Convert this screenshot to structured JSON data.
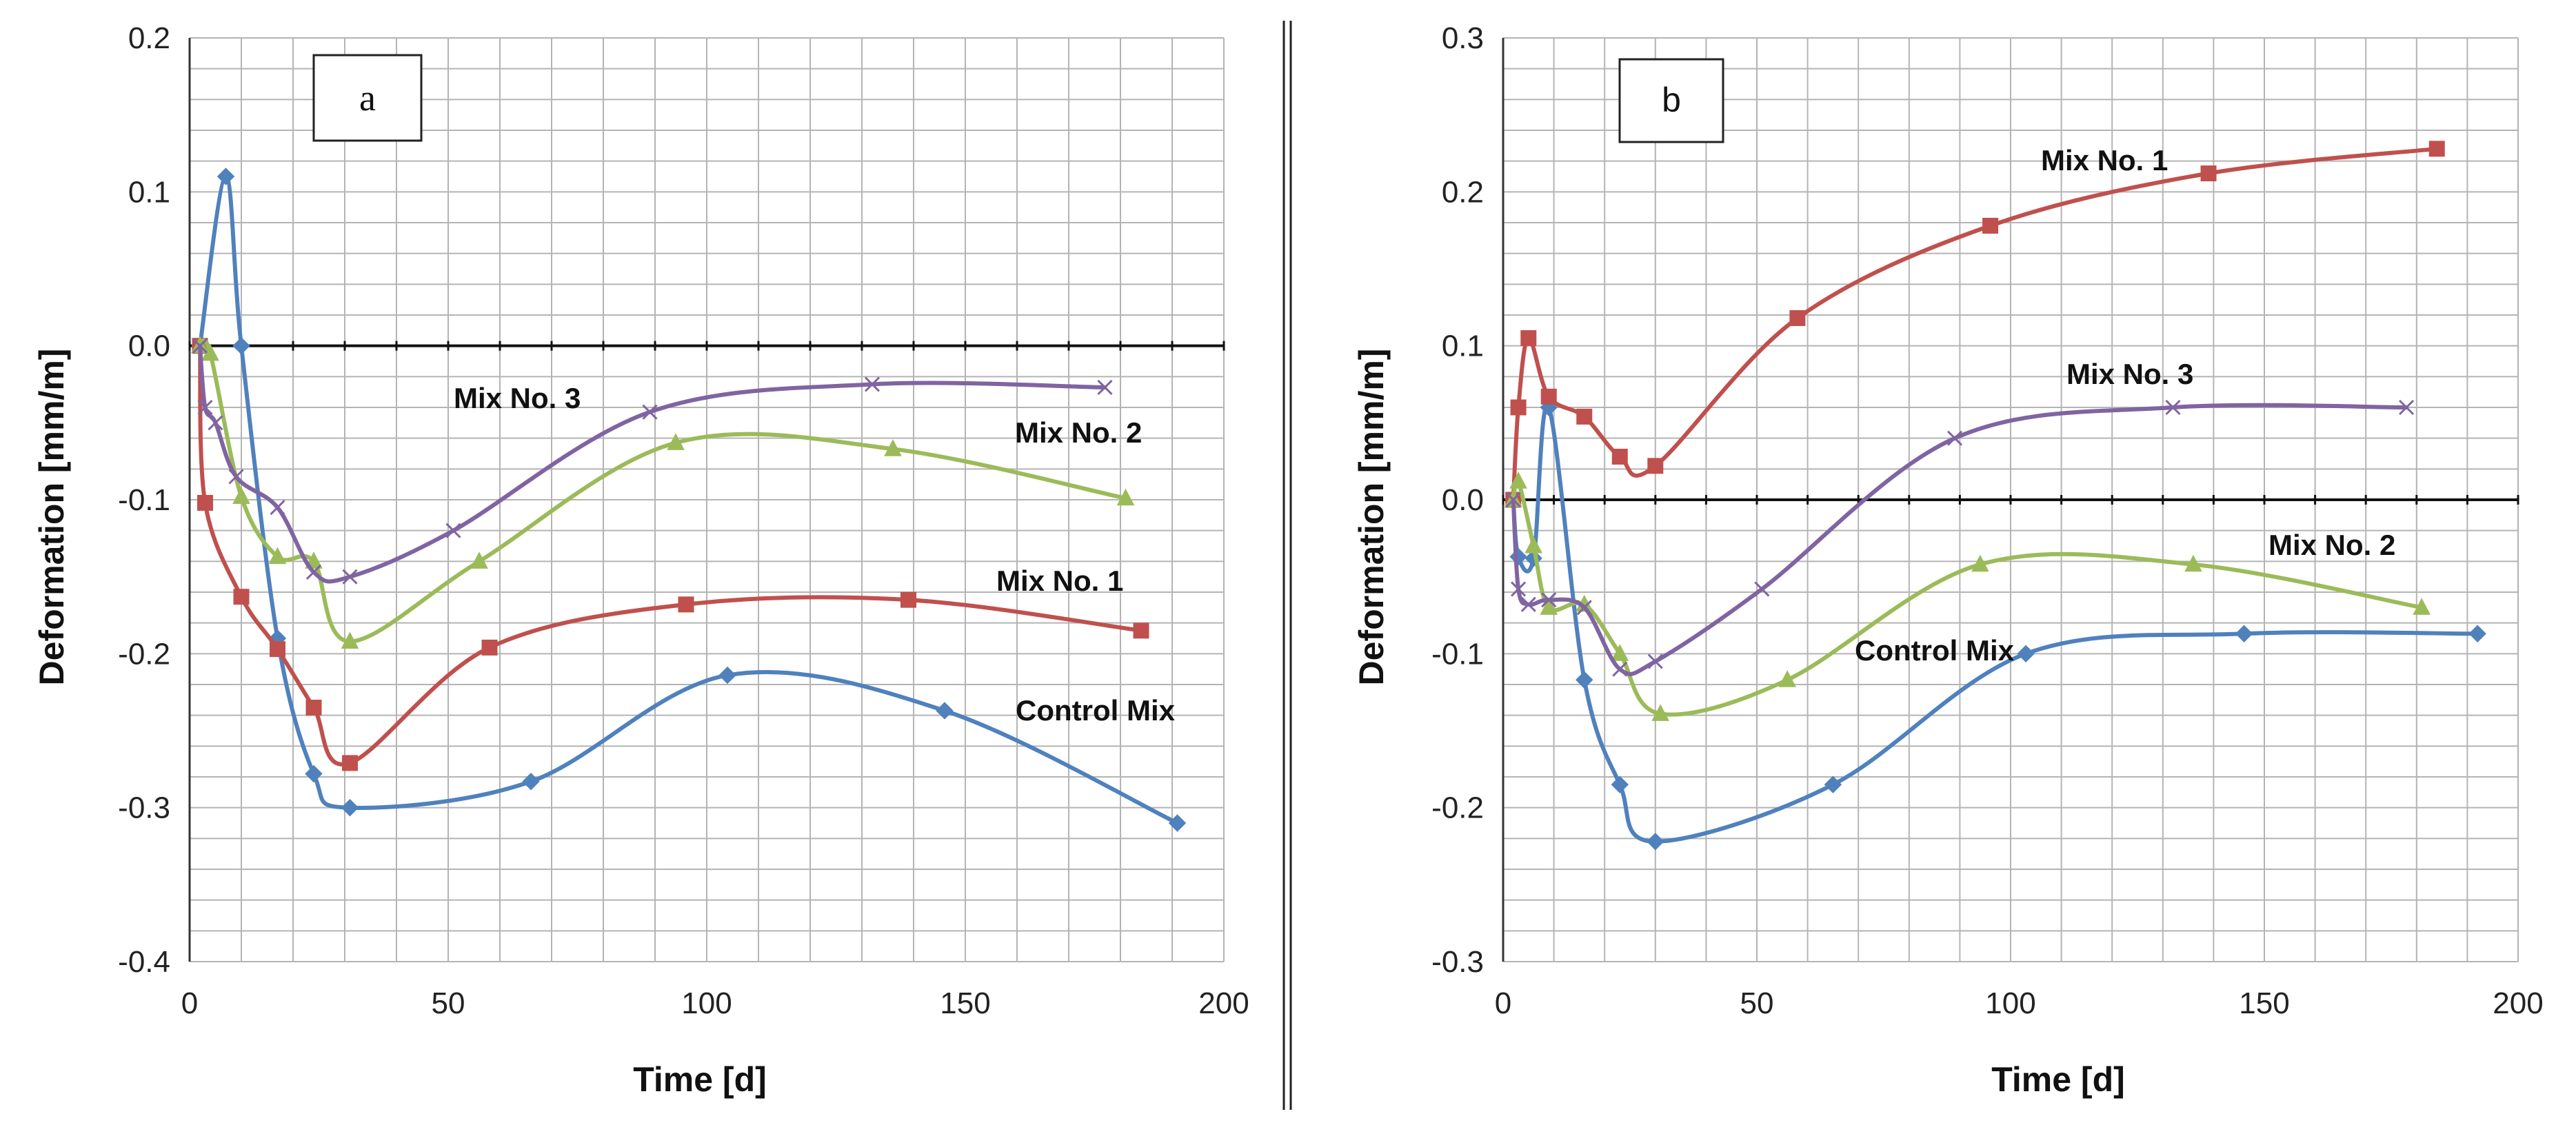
{
  "chart_data": [
    {
      "panel": "a",
      "type": "line",
      "xlabel": "Time [d]",
      "ylabel": "Deformation [mm/m]",
      "xlim": [
        0,
        200
      ],
      "ylim": [
        -0.4,
        0.2
      ],
      "xticks": [
        "0",
        "50",
        "100",
        "150",
        "200"
      ],
      "yticks": [
        "-0.4",
        "-0.3",
        "-0.2",
        "-0.1",
        "0.0",
        "0.1",
        "0.2"
      ],
      "xtick_values": [
        0,
        50,
        100,
        150,
        200
      ],
      "ytick_values": [
        -0.4,
        -0.3,
        -0.2,
        -0.1,
        0.0,
        0.1,
        0.2
      ],
      "grid": true,
      "series": [
        {
          "name": "Control Mix",
          "color": "#4f81bd",
          "marker": "diamond",
          "x": [
            2,
            7,
            10,
            17,
            24,
            31,
            66,
            104,
            146,
            191
          ],
          "y": [
            0.0,
            0.11,
            0.0,
            -0.19,
            -0.278,
            -0.3,
            -0.283,
            -0.214,
            -0.237,
            -0.31
          ]
        },
        {
          "name": "Mix No. 1",
          "color": "#c0504d",
          "marker": "square",
          "x": [
            2,
            3,
            10,
            17,
            24,
            31,
            58,
            96,
            139,
            184
          ],
          "y": [
            0.0,
            -0.102,
            -0.163,
            -0.197,
            -0.235,
            -0.271,
            -0.196,
            -0.168,
            -0.165,
            -0.185
          ]
        },
        {
          "name": "Mix No. 2",
          "color": "#9bbb59",
          "marker": "triangle",
          "x": [
            2,
            4,
            10,
            17,
            24,
            31,
            56,
            94,
            136,
            181
          ],
          "y": [
            0.0,
            -0.005,
            -0.098,
            -0.137,
            -0.14,
            -0.192,
            -0.14,
            -0.063,
            -0.067,
            -0.099
          ]
        },
        {
          "name": "Mix No. 3",
          "color": "#8064a2",
          "marker": "x",
          "x": [
            2,
            3,
            5,
            9,
            17,
            24,
            31,
            51,
            89,
            132,
            177
          ],
          "y": [
            0.0,
            -0.04,
            -0.05,
            -0.085,
            -0.105,
            -0.147,
            -0.15,
            -0.12,
            -0.043,
            -0.025,
            -0.027
          ]
        }
      ],
      "annotations": [
        "Mix No. 3",
        "Mix No. 2",
        "Mix No. 1",
        "Control Mix"
      ]
    },
    {
      "panel": "b",
      "type": "line",
      "xlabel": "Time [d]",
      "ylabel": "Deformation [mm/m]",
      "xlim": [
        0,
        200
      ],
      "ylim": [
        -0.3,
        0.3
      ],
      "xticks": [
        "0",
        "50",
        "100",
        "150",
        "200"
      ],
      "yticks": [
        "-0.3",
        "-0.2",
        "-0.1",
        "0.0",
        "0.1",
        "0.2",
        "0.3"
      ],
      "xtick_values": [
        0,
        50,
        100,
        150,
        200
      ],
      "ytick_values": [
        -0.3,
        -0.2,
        -0.1,
        0.0,
        0.1,
        0.2,
        0.3
      ],
      "grid": true,
      "series": [
        {
          "name": "Control Mix",
          "color": "#4f81bd",
          "marker": "diamond",
          "x": [
            2,
            3,
            6,
            9,
            16,
            23,
            30,
            65,
            103,
            146,
            192
          ],
          "y": [
            0.0,
            -0.037,
            -0.038,
            0.06,
            -0.117,
            -0.185,
            -0.222,
            -0.185,
            -0.1,
            -0.087,
            -0.087
          ]
        },
        {
          "name": "Mix No. 1",
          "color": "#c0504d",
          "marker": "square",
          "x": [
            2,
            3,
            5,
            9,
            16,
            23,
            30,
            58,
            96,
            139,
            184
          ],
          "y": [
            0.0,
            0.06,
            0.105,
            0.067,
            0.054,
            0.028,
            0.022,
            0.118,
            0.178,
            0.212,
            0.228
          ]
        },
        {
          "name": "Mix No. 2",
          "color": "#9bbb59",
          "marker": "triangle",
          "x": [
            2,
            3,
            6,
            9,
            16,
            23,
            31,
            56,
            94,
            136,
            181
          ],
          "y": [
            0.0,
            0.012,
            -0.03,
            -0.07,
            -0.068,
            -0.1,
            -0.139,
            -0.117,
            -0.042,
            -0.042,
            -0.07
          ]
        },
        {
          "name": "Mix No. 3",
          "color": "#8064a2",
          "marker": "x",
          "x": [
            2,
            3,
            5,
            9,
            16,
            23,
            30,
            51,
            89,
            132,
            178
          ],
          "y": [
            0.0,
            -0.058,
            -0.068,
            -0.065,
            -0.07,
            -0.11,
            -0.105,
            -0.058,
            0.04,
            0.06,
            0.06
          ]
        }
      ],
      "annotations": [
        "Mix No. 1",
        "Mix No. 3",
        "Mix No. 2",
        "Control Mix"
      ]
    }
  ]
}
